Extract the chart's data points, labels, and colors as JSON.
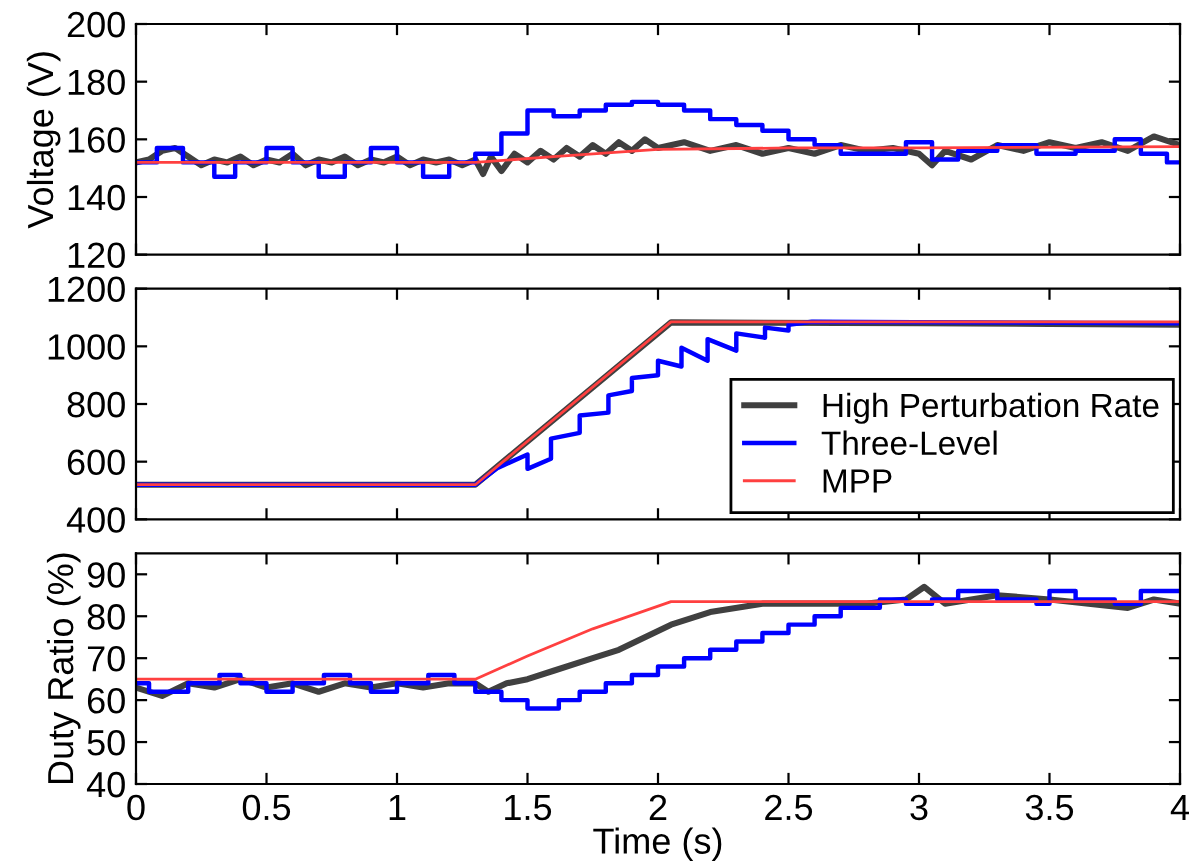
{
  "chart_data": [
    {
      "type": "line",
      "ylabel": "Voltage (V)",
      "xlim": [
        0,
        4
      ],
      "xticks": [
        0,
        0.5,
        1,
        1.5,
        2,
        2.5,
        3,
        3.5,
        4
      ],
      "ylim": [
        120,
        200
      ],
      "yticks": [
        120,
        140,
        160,
        180,
        200
      ],
      "tick_labels": "y",
      "grid": false,
      "legend": false,
      "series": [
        {
          "color": "#404040",
          "x": [
            0,
            0.05,
            0.1,
            0.15,
            0.2,
            0.25,
            0.3,
            0.35,
            0.4,
            0.45,
            0.5,
            0.55,
            0.6,
            0.65,
            0.7,
            0.75,
            0.8,
            0.85,
            0.9,
            0.95,
            1.0,
            1.05,
            1.1,
            1.15,
            1.2,
            1.25,
            1.3,
            1.33,
            1.36,
            1.4,
            1.45,
            1.5,
            1.55,
            1.6,
            1.65,
            1.7,
            1.75,
            1.8,
            1.85,
            1.9,
            1.95,
            2.0,
            2.1,
            2.2,
            2.3,
            2.4,
            2.5,
            2.6,
            2.7,
            2.8,
            2.9,
            3.0,
            3.05,
            3.1,
            3.2,
            3.3,
            3.4,
            3.5,
            3.6,
            3.7,
            3.8,
            3.9,
            4.0
          ],
          "values": [
            152,
            153,
            156,
            157,
            154,
            151,
            153,
            152,
            154,
            151,
            153,
            152,
            155,
            151,
            153,
            152,
            154,
            151,
            153,
            152,
            154,
            151,
            153,
            152,
            153,
            151,
            153,
            148,
            154,
            149,
            155,
            152,
            156,
            153,
            157,
            154,
            158,
            155,
            159,
            156,
            160,
            157,
            159,
            156,
            158,
            155,
            157,
            155,
            158,
            156,
            157,
            155,
            151,
            156,
            153,
            158,
            156,
            159,
            157,
            159,
            156,
            161,
            158
          ]
        },
        {
          "type": "step",
          "color": "#0000ff",
          "x": [
            0,
            0.08,
            0.18,
            0.3,
            0.38,
            0.5,
            0.6,
            0.7,
            0.8,
            0.9,
            1.0,
            1.1,
            1.2,
            1.3,
            1.4,
            1.5,
            1.6,
            1.7,
            1.8,
            1.9,
            2.0,
            2.1,
            2.2,
            2.3,
            2.4,
            2.5,
            2.6,
            2.7,
            2.95,
            3.05,
            3.15,
            3.3,
            3.45,
            3.6,
            3.75,
            3.85,
            3.95,
            4.0
          ],
          "values": [
            152,
            157,
            152,
            147,
            152,
            157,
            152,
            147,
            152,
            157,
            152,
            147,
            152,
            155,
            162,
            170,
            168,
            170,
            172,
            173,
            172,
            170,
            167,
            165,
            163,
            160,
            158,
            155,
            159,
            153,
            156,
            158,
            155,
            156,
            160,
            155,
            152,
            152
          ]
        },
        {
          "color": "#ff4040",
          "x": [
            0,
            1.3,
            1.6,
            2.0,
            2.5,
            3,
            4
          ],
          "values": [
            152,
            152,
            154,
            156.5,
            157,
            157,
            157.5
          ]
        }
      ]
    },
    {
      "type": "line",
      "xlim": [
        0,
        4
      ],
      "xticks": [
        0,
        0.5,
        1,
        1.5,
        2,
        2.5,
        3,
        3.5,
        4
      ],
      "ylim": [
        400,
        1200
      ],
      "yticks": [
        400,
        600,
        800,
        1000,
        1200
      ],
      "tick_labels": "y",
      "grid": false,
      "legend": "bottom right",
      "series": [
        {
          "name": "High Perturbation Rate",
          "color": "#404040",
          "x": [
            0,
            1.3,
            2.05,
            3,
            3.5,
            4
          ],
          "values": [
            520,
            520,
            1083,
            1080,
            1078,
            1075
          ]
        },
        {
          "name": "Three-Level",
          "color": "#0000ff",
          "x": [
            0,
            1.3,
            1.39,
            1.39,
            1.5,
            1.5,
            1.59,
            1.59,
            1.7,
            1.7,
            1.81,
            1.81,
            1.9,
            1.9,
            2.0,
            2.0,
            2.09,
            2.09,
            2.19,
            2.19,
            2.3,
            2.3,
            2.41,
            2.41,
            2.5,
            2.5,
            2.59,
            4
          ],
          "values": [
            520,
            520,
            582,
            580,
            625,
            575,
            610,
            680,
            700,
            760,
            770,
            830,
            845,
            890,
            900,
            950,
            930,
            995,
            950,
            1025,
            985,
            1045,
            1030,
            1065,
            1055,
            1075,
            1085,
            1080
          ]
        },
        {
          "name": "MPP",
          "color": "#ff4040",
          "x": [
            0,
            1.3,
            2.05,
            4
          ],
          "values": [
            520,
            520,
            1085,
            1085
          ]
        }
      ]
    },
    {
      "type": "line",
      "ylabel": "Duty Ratio (%)",
      "xlabel": "Time (s)",
      "xlim": [
        0,
        4
      ],
      "xticks": [
        0,
        0.5,
        1,
        1.5,
        2,
        2.5,
        3,
        3.5,
        4
      ],
      "ylim": [
        40,
        95
      ],
      "yticks": [
        40,
        50,
        60,
        70,
        80,
        90
      ],
      "grid": false,
      "legend": false,
      "series": [
        {
          "color": "#404040",
          "x": [
            0,
            0.1,
            0.2,
            0.3,
            0.4,
            0.5,
            0.6,
            0.7,
            0.8,
            0.9,
            1.0,
            1.1,
            1.2,
            1.3,
            1.35,
            1.42,
            1.5,
            1.6,
            1.75,
            1.85,
            1.95,
            2.05,
            2.2,
            2.4,
            2.6,
            2.8,
            2.95,
            3.02,
            3.1,
            3.3,
            3.5,
            3.65,
            3.8,
            3.9,
            4.0
          ],
          "values": [
            63,
            61,
            64,
            63,
            65,
            63,
            64,
            62,
            64,
            63,
            64,
            63,
            64,
            64,
            62,
            64,
            65,
            67,
            70,
            72,
            75,
            78,
            81,
            83,
            83,
            83,
            84,
            87,
            83,
            85,
            84,
            83,
            82,
            84,
            83
          ]
        },
        {
          "type": "step",
          "color": "#0000ff",
          "x": [
            0,
            0.05,
            0.2,
            0.32,
            0.4,
            0.5,
            0.6,
            0.72,
            0.82,
            0.9,
            1.0,
            1.12,
            1.22,
            1.3,
            1.4,
            1.5,
            1.62,
            1.7,
            1.8,
            1.9,
            2.0,
            2.1,
            2.2,
            2.3,
            2.4,
            2.5,
            2.6,
            2.7,
            2.85,
            2.95,
            3.05,
            3.15,
            3.3,
            3.45,
            3.5,
            3.6,
            3.75,
            3.85,
            4.0
          ],
          "values": [
            64,
            62,
            64,
            66,
            64,
            62,
            64,
            66,
            64,
            62,
            64,
            66,
            64,
            62,
            60,
            58,
            60,
            62,
            64,
            66,
            68,
            70,
            72,
            74,
            76,
            78,
            80,
            82,
            84,
            83,
            84,
            86,
            84,
            83,
            86,
            84,
            83,
            86,
            86
          ]
        },
        {
          "color": "#ff4040",
          "x": [
            0,
            1.3,
            1.5,
            1.75,
            2.05,
            4
          ],
          "values": [
            65,
            65,
            70.5,
            77,
            83.5,
            83.5
          ]
        }
      ]
    }
  ]
}
